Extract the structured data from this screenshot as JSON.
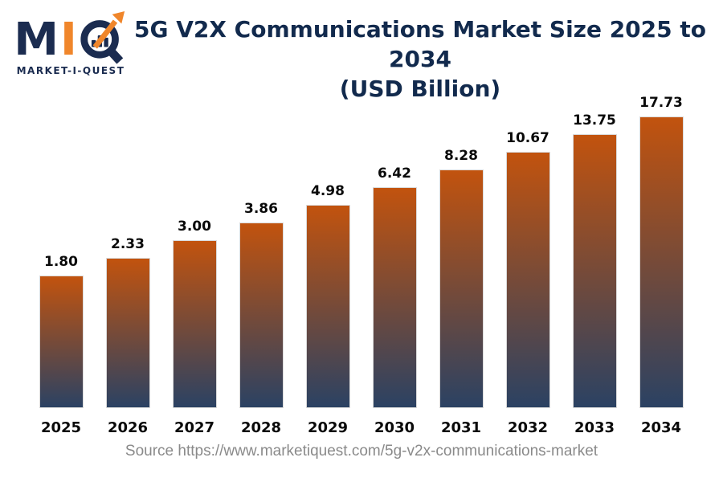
{
  "logo": {
    "letter_m": "M",
    "letter_i": "I",
    "q_icon": "magnifier-q-with-growth-arrow",
    "caption": "MARKET-I-QUEST",
    "navy": "#1B2C50",
    "orange": "#F0862B"
  },
  "title": {
    "line1": "5G V2X Communications Market Size 2025 to 2034",
    "line2": "(USD Billion)",
    "color": "#122A4D"
  },
  "source": "Source https://www.marketiquest.com/5g-v2x-communications-market",
  "colors": {
    "background": "#FFFFFF",
    "bar_gradient_top": "#C2530E",
    "bar_gradient_bottom": "#2B4263",
    "bar_border": "#D9D9D9",
    "value_label": "#0A0A0A",
    "year_label": "#0A0A0A",
    "source_text": "#8A8A8A"
  },
  "chart_data": {
    "type": "bar",
    "title": "5G V2X Communications Market Size 2025 to 2034 (USD Billion)",
    "categories": [
      "2025",
      "2026",
      "2027",
      "2028",
      "2029",
      "2030",
      "2031",
      "2032",
      "2033",
      "2034"
    ],
    "values": [
      1.8,
      2.33,
      3.0,
      3.86,
      4.98,
      6.42,
      8.28,
      10.67,
      13.75,
      17.73
    ],
    "value_labels": [
      "1.80",
      "2.33",
      "3.00",
      "3.86",
      "4.98",
      "6.42",
      "8.28",
      "10.67",
      "13.75",
      "17.73"
    ],
    "xlabel": "",
    "ylabel": "",
    "unit": "USD Billion",
    "grid": false,
    "legend": false,
    "axis_lines": false,
    "bar_scale": "logarithmic-visual"
  }
}
